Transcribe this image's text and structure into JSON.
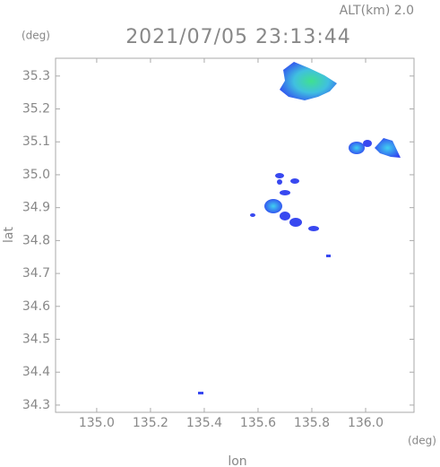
{
  "chart_data": {
    "type": "map",
    "altitude_label": "ALT(km)  2.0",
    "title": "2021/07/05 23:13:44",
    "y_unit": "(deg)",
    "x_unit": "(deg)",
    "x_label": "lon",
    "y_label": "lat",
    "xlim": [
      134.847,
      136.18
    ],
    "ylim": [
      34.278,
      35.354
    ],
    "xticks": [
      {
        "value": 135.0,
        "label": "135.0"
      },
      135.2,
      135.4,
      135.6,
      135.8,
      {
        "value": 136.0,
        "label": "136.0"
      }
    ],
    "yticks": [
      34.3,
      34.4,
      34.5,
      34.6,
      34.7,
      34.8,
      34.9,
      {
        "value": 35.0,
        "label": "35.0"
      },
      35.1,
      35.2,
      35.3
    ]
  }
}
